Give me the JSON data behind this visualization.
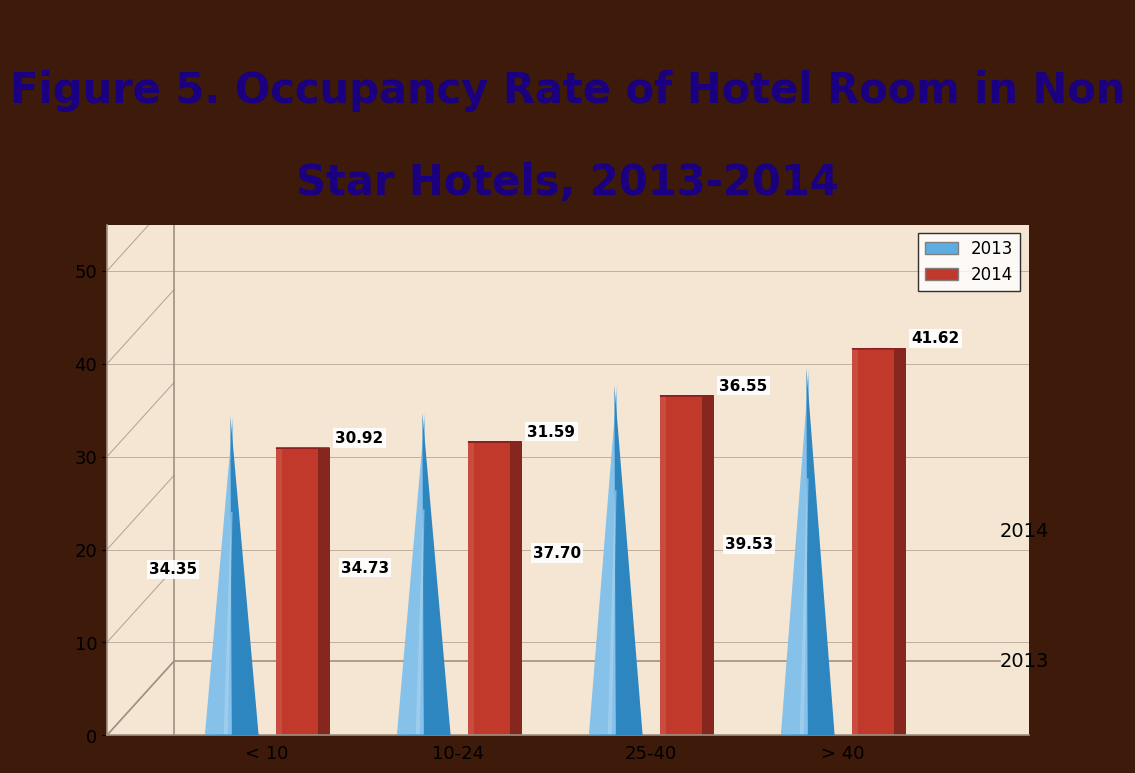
{
  "categories": [
    "< 10",
    "10-24",
    "25-40",
    "> 40"
  ],
  "values_2013": [
    34.35,
    34.73,
    37.7,
    39.53
  ],
  "values_2014": [
    30.92,
    31.59,
    36.55,
    41.62
  ],
  "blue_light": "#85c1e9",
  "blue_mid": "#5dade2",
  "blue_dark": "#2e86c1",
  "blue_shadow": "#1a5276",
  "red_top": "#e8a090",
  "red_mid": "#c0392b",
  "red_dark": "#7b241c",
  "red_highlight": "#d35400",
  "title_line1": "Figure 5. Occupancy Rate of Hotel Room in Non",
  "title_line2": "Star Hotels, 2013-2014",
  "title_color": "#1a0080",
  "title_fontsize": 30,
  "bg_outer": "#3d1a0a",
  "bg_chart": "#f5e6d3",
  "bg_title": "#ffffff",
  "ylim": [
    0,
    55
  ],
  "yticks": [
    0,
    10,
    20,
    30,
    40,
    50
  ],
  "legend_2013": "2013",
  "legend_2014": "2014",
  "label_2013_axis": "2013",
  "label_2014_axis": "2014",
  "label_fontsize": 11,
  "tick_fontsize": 13
}
